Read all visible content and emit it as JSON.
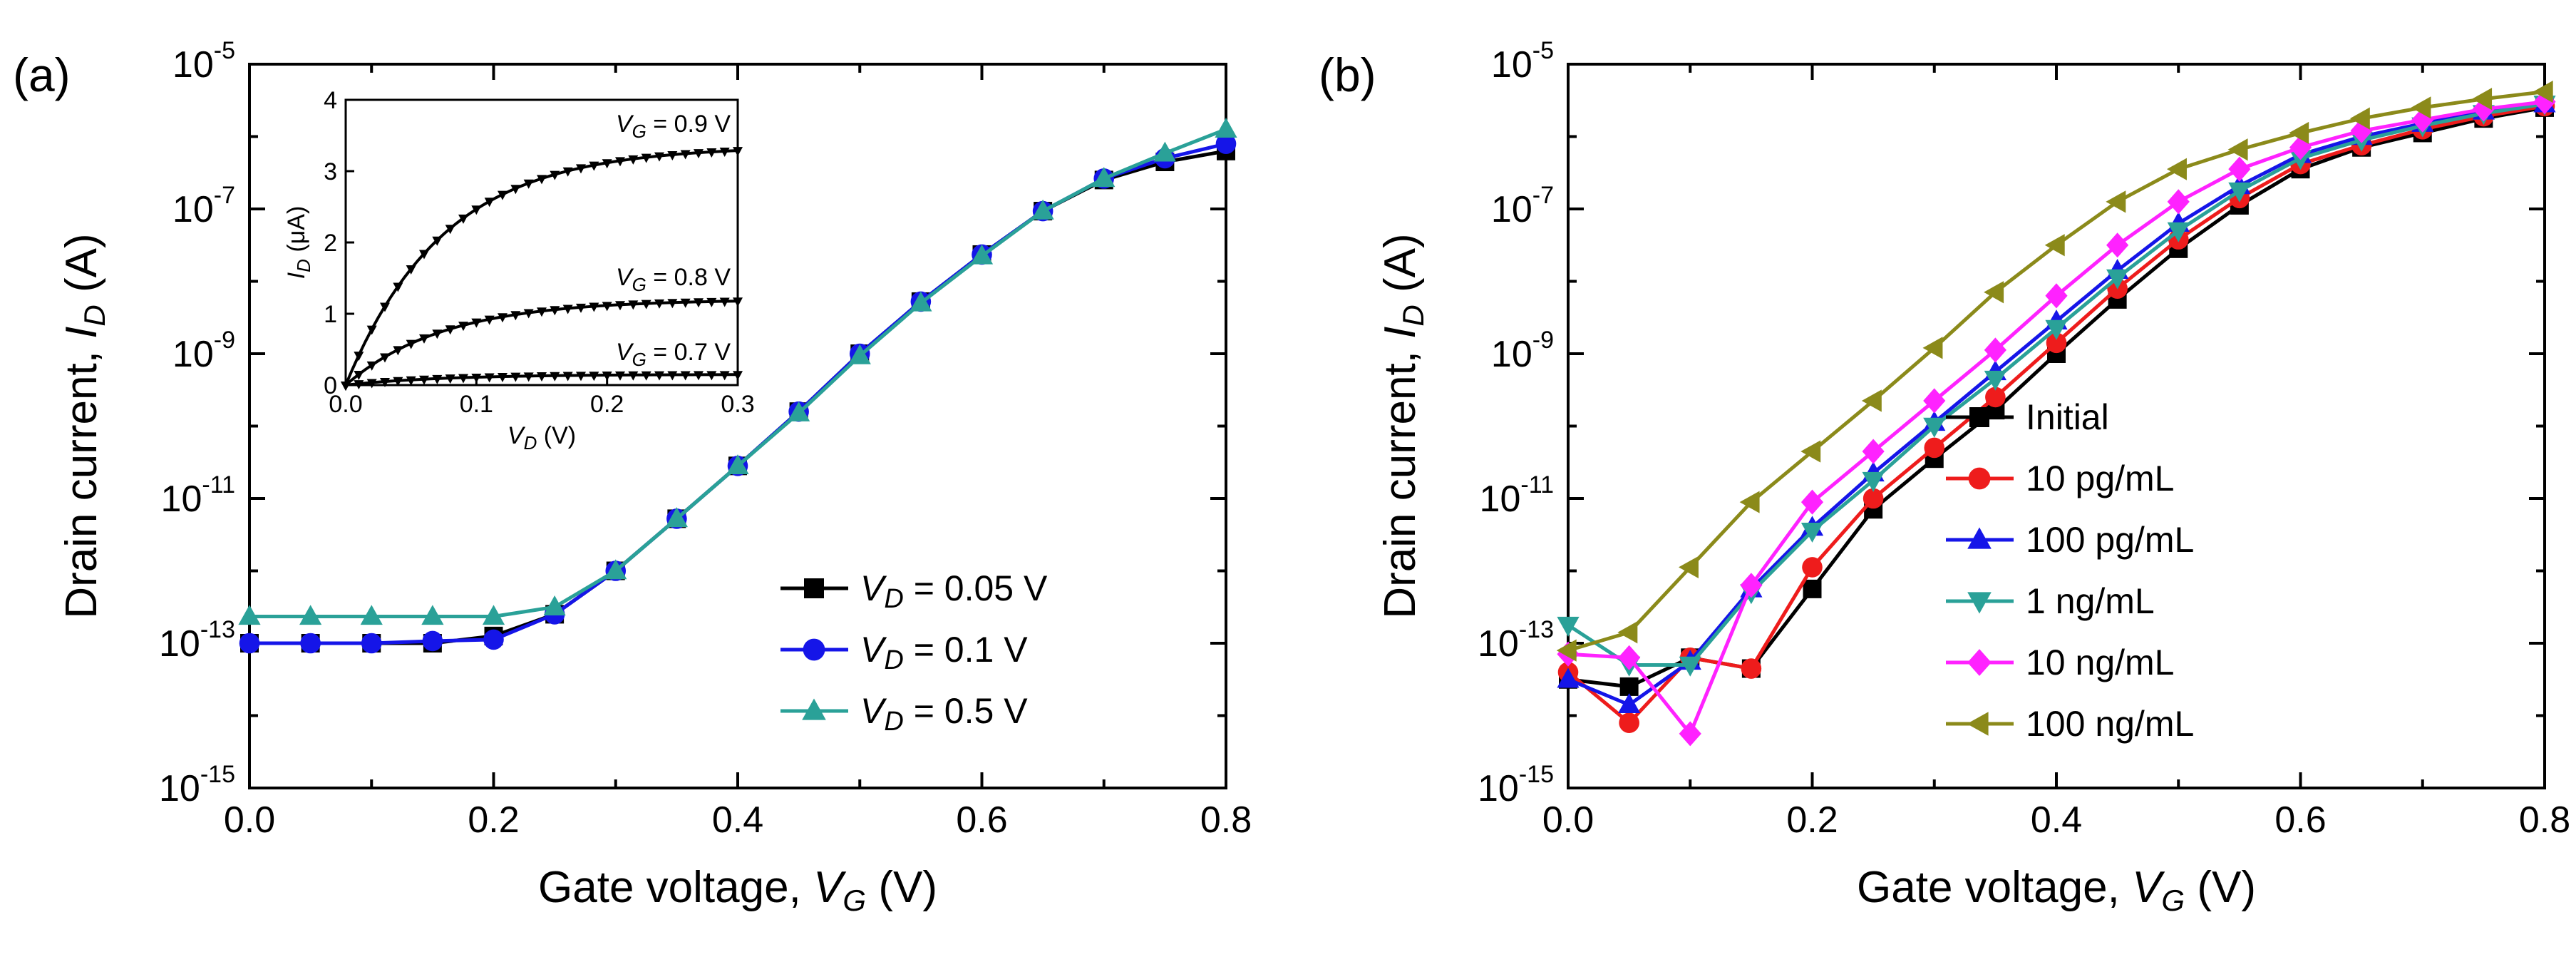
{
  "chart_data": [
    {
      "panel": "(a)",
      "type": "line",
      "xlabel_prefix": "Gate voltage, ",
      "xlabel_var": "V",
      "xlabel_sub": "G",
      "xlabel_unit": " (V)",
      "ylabel_prefix": "Drain current, ",
      "ylabel_var": "I",
      "ylabel_sub": "D",
      "ylabel_unit": " (A)",
      "xlim": [
        0,
        0.8
      ],
      "ylim_log10": [
        -15,
        -5
      ],
      "xticks": [
        "0.0",
        "0.2",
        "0.4",
        "0.6",
        "0.8"
      ],
      "yticks": [
        {
          "base": "10",
          "exp": "-15"
        },
        {
          "base": "10",
          "exp": "-13"
        },
        {
          "base": "10",
          "exp": "-11"
        },
        {
          "base": "10",
          "exp": "-9"
        },
        {
          "base": "10",
          "exp": "-7"
        },
        {
          "base": "10",
          "exp": "-5"
        }
      ],
      "x": [
        0.0,
        0.05,
        0.1,
        0.15,
        0.2,
        0.25,
        0.3,
        0.35,
        0.4,
        0.45,
        0.5,
        0.55,
        0.6,
        0.65,
        0.7,
        0.75,
        0.8
      ],
      "series": [
        {
          "name_var": "V",
          "name_sub": "D",
          "name_rest": " = 0.05 V",
          "color": "#000000",
          "marker": "square",
          "log10_values": [
            -13.0,
            -13.0,
            -13.0,
            -13.0,
            -12.9,
            -12.6,
            -12.0,
            -11.28,
            -10.55,
            -9.8,
            -9.0,
            -8.28,
            -7.63,
            -7.03,
            -6.6,
            -6.35,
            -6.2
          ]
        },
        {
          "name_var": "V",
          "name_sub": "D",
          "name_rest": " = 0.1 V",
          "color": "#1515e8",
          "marker": "circle",
          "log10_values": [
            -13.0,
            -13.0,
            -13.0,
            -12.97,
            -12.95,
            -12.6,
            -12.0,
            -11.28,
            -10.55,
            -9.8,
            -9.0,
            -8.28,
            -7.63,
            -7.03,
            -6.58,
            -6.3,
            -6.1
          ]
        },
        {
          "name_var": "V",
          "name_sub": "D",
          "name_rest": " = 0.5 V",
          "color": "#2aa198",
          "marker": "triangle",
          "log10_values": [
            -12.63,
            -12.63,
            -12.63,
            -12.63,
            -12.63,
            -12.5,
            -12.0,
            -11.28,
            -10.55,
            -9.82,
            -9.03,
            -8.3,
            -7.65,
            -7.03,
            -6.58,
            -6.23,
            -5.9
          ]
        }
      ],
      "legend_position": "bottom-right",
      "inset": {
        "type": "line",
        "xlabel_var": "V",
        "xlabel_sub": "D",
        "xlabel_unit": " (V)",
        "ylabel_var": "I",
        "ylabel_sub": "D",
        "ylabel_unit": " (μA)",
        "xlim": [
          0,
          0.3
        ],
        "ylim": [
          0,
          4
        ],
        "xticks": [
          "0.0",
          "0.1",
          "0.2",
          "0.3"
        ],
        "yticks": [
          "0",
          "1",
          "2",
          "3",
          "4"
        ],
        "curves": [
          {
            "label_var": "V",
            "label_sub": "G",
            "label_rest": " = 0.9 V",
            "saturation": 3.35
          },
          {
            "label_var": "V",
            "label_sub": "G",
            "label_rest": " = 0.8 V",
            "saturation": 1.2
          },
          {
            "label_var": "V",
            "label_sub": "G",
            "label_rest": " = 0.7 V",
            "saturation": 0.15
          }
        ]
      }
    },
    {
      "panel": "(b)",
      "type": "line",
      "xlabel_prefix": "Gate voltage, ",
      "xlabel_var": "V",
      "xlabel_sub": "G",
      "xlabel_unit": " (V)",
      "ylabel_prefix": "Drain current, ",
      "ylabel_var": "I",
      "ylabel_sub": "D",
      "ylabel_unit": " (A)",
      "xlim": [
        0,
        0.8
      ],
      "ylim_log10": [
        -15,
        -5
      ],
      "xticks": [
        "0.0",
        "0.2",
        "0.4",
        "0.6",
        "0.8"
      ],
      "yticks": [
        {
          "base": "10",
          "exp": "-15"
        },
        {
          "base": "10",
          "exp": "-13"
        },
        {
          "base": "10",
          "exp": "-11"
        },
        {
          "base": "10",
          "exp": "-9"
        },
        {
          "base": "10",
          "exp": "-7"
        },
        {
          "base": "10",
          "exp": "-5"
        }
      ],
      "x": [
        0.0,
        0.05,
        0.1,
        0.15,
        0.2,
        0.25,
        0.3,
        0.35,
        0.4,
        0.45,
        0.5,
        0.55,
        0.6,
        0.65,
        0.7,
        0.75,
        0.8
      ],
      "series": [
        {
          "name": "Initial",
          "color": "#000000",
          "marker": "square",
          "log10_values": [
            -13.5,
            -13.6,
            -13.2,
            -13.35,
            -12.25,
            -11.15,
            -10.45,
            -9.78,
            -9.0,
            -8.25,
            -7.55,
            -6.95,
            -6.45,
            -6.15,
            -5.95,
            -5.75,
            -5.6
          ]
        },
        {
          "name": "10 pg/mL",
          "color": "#ee1c1c",
          "marker": "circle",
          "log10_values": [
            -13.4,
            -14.1,
            -13.2,
            -13.35,
            -11.95,
            -11.0,
            -10.3,
            -9.6,
            -8.85,
            -8.1,
            -7.42,
            -6.85,
            -6.38,
            -6.12,
            -5.9,
            -5.72,
            -5.58
          ]
        },
        {
          "name": "100 pg/mL",
          "color": "#1515e8",
          "marker": "triangle",
          "log10_values": [
            -13.5,
            -13.85,
            -13.25,
            -12.25,
            -11.4,
            -10.65,
            -9.95,
            -9.25,
            -8.55,
            -7.85,
            -7.2,
            -6.68,
            -6.25,
            -6.0,
            -5.82,
            -5.65,
            -5.55
          ]
        },
        {
          "name": "1 ng/mL",
          "color": "#2aa198",
          "marker": "triangle-down",
          "log10_values": [
            -12.75,
            -13.3,
            -13.3,
            -12.3,
            -11.45,
            -10.75,
            -10.0,
            -9.35,
            -8.65,
            -7.95,
            -7.3,
            -6.75,
            -6.3,
            -6.05,
            -5.85,
            -5.68,
            -5.55
          ]
        },
        {
          "name": "10 ng/mL",
          "color": "#ff22ff",
          "marker": "diamond",
          "log10_values": [
            -13.15,
            -13.2,
            -14.25,
            -12.2,
            -11.05,
            -10.35,
            -9.65,
            -8.95,
            -8.2,
            -7.5,
            -6.9,
            -6.45,
            -6.15,
            -5.92,
            -5.77,
            -5.62,
            -5.52
          ]
        },
        {
          "name": "100 ng/mL",
          "color": "#8b8a1a",
          "marker": "triangle-left",
          "log10_values": [
            -13.1,
            -12.85,
            -11.95,
            -11.05,
            -10.35,
            -9.65,
            -8.92,
            -8.15,
            -7.5,
            -6.9,
            -6.45,
            -6.18,
            -5.95,
            -5.75,
            -5.6,
            -5.48,
            -5.38
          ]
        }
      ],
      "legend_position": "bottom-right"
    }
  ]
}
